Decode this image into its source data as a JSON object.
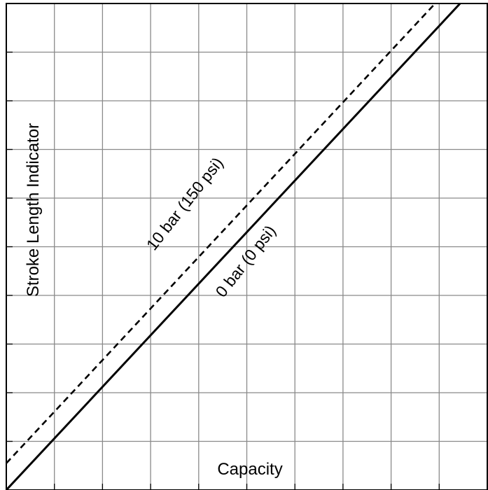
{
  "chart_data": {
    "type": "line",
    "title": "",
    "xlabel": "Capacity",
    "ylabel": "Stroke Length Indicator",
    "xlim": [
      0,
      10
    ],
    "ylim": [
      0,
      10
    ],
    "grid": true,
    "series": [
      {
        "name": "0 bar (0 psi)",
        "style": "solid",
        "x": [
          0,
          10
        ],
        "y": [
          0,
          10.6
        ]
      },
      {
        "name": "10 bar (150 psi)",
        "style": "dashed",
        "x": [
          0,
          10
        ],
        "y": [
          0.55,
          11.15
        ]
      }
    ]
  }
}
